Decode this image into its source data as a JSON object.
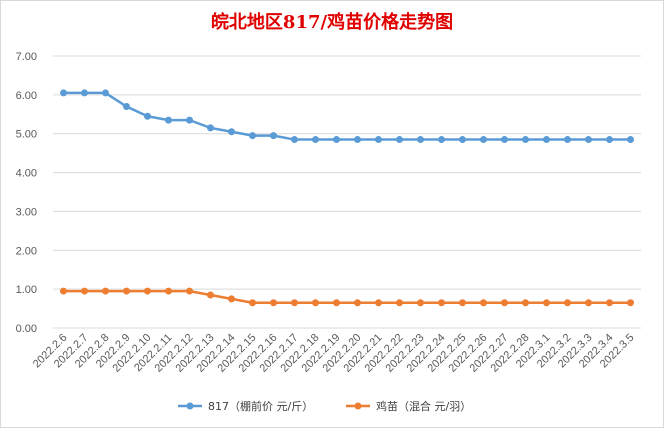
{
  "chart_data": {
    "type": "line",
    "title": "皖北地区817/鸡苗价格走势图",
    "xlabel": "",
    "ylabel": "",
    "ylim": [
      0,
      7
    ],
    "yticks": [
      "0.00",
      "1.00",
      "2.00",
      "3.00",
      "4.00",
      "5.00",
      "6.00",
      "7.00"
    ],
    "categories": [
      "2022.2.6",
      "2022.2.7",
      "2022.2.8",
      "2022.2.9",
      "2022.2.10",
      "2022.2.11",
      "2022.2.12",
      "2022.2.13",
      "2022.2.14",
      "2022.2.15",
      "2022.2.16",
      "2022.2.17",
      "2022.2.18",
      "2022.2.19",
      "2022.2.20",
      "2022.2.21",
      "2022.2.22",
      "2022.2.23",
      "2022.2.24",
      "2022.2.25",
      "2022.2.26",
      "2022.2.27",
      "2022.2.28",
      "2022.3.1",
      "2022.3.2",
      "2022.3.3",
      "2022.3.4",
      "2022.3.5"
    ],
    "series": [
      {
        "name": "817（棚前价 元/斤）",
        "color": "#5b9bd5",
        "values": [
          6.05,
          6.05,
          6.05,
          5.7,
          5.45,
          5.35,
          5.35,
          5.15,
          5.05,
          4.95,
          4.95,
          4.85,
          4.85,
          4.85,
          4.85,
          4.85,
          4.85,
          4.85,
          4.85,
          4.85,
          4.85,
          4.85,
          4.85,
          4.85,
          4.85,
          4.85,
          4.85,
          4.85
        ]
      },
      {
        "name": "鸡苗（混合 元/羽）",
        "color": "#ed7d31",
        "values": [
          0.95,
          0.95,
          0.95,
          0.95,
          0.95,
          0.95,
          0.95,
          0.85,
          0.75,
          0.65,
          0.65,
          0.65,
          0.65,
          0.65,
          0.65,
          0.65,
          0.65,
          0.65,
          0.65,
          0.65,
          0.65,
          0.65,
          0.65,
          0.65,
          0.65,
          0.65,
          0.65,
          0.65
        ]
      }
    ],
    "grid": true,
    "legend_position": "bottom"
  }
}
